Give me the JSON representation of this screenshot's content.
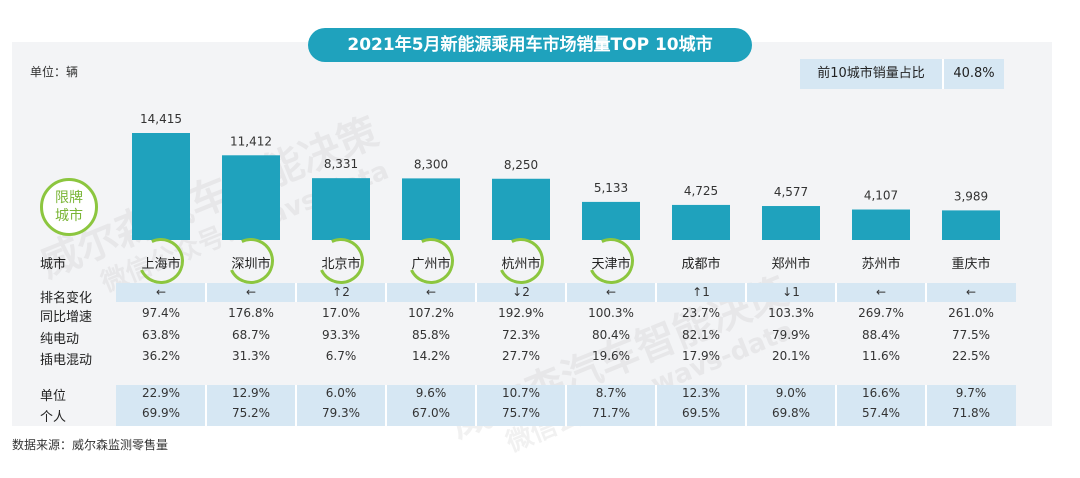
{
  "title": "2021年5月新能源乘用车市场销量TOP 10城市",
  "unit_label": "单位：辆",
  "top10_share": {
    "label": "前10城市销量占比",
    "value": "40.8%"
  },
  "watermarks": [
    "威尔森汽车智能决策",
    "微信公众号：wavs-data",
    "威尔森汽车智能决策",
    "微信公众号：wavs-data"
  ],
  "limit_badge": {
    "line1": "限牌",
    "line2": "城市"
  },
  "row_labels": {
    "city": "城市",
    "rank_change": "排名变化",
    "yoy": "同比增速",
    "bev": "纯电动",
    "phev": "插电混动",
    "org": "单位",
    "personal": "个人"
  },
  "source": "数据来源：威尔森监测零售量",
  "chart_data": {
    "type": "bar",
    "title": "2021年5月新能源乘用车市场销量TOP 10城市",
    "ylabel": "单位：辆",
    "categories": [
      "上海市",
      "深圳市",
      "北京市",
      "广州市",
      "杭州市",
      "天津市",
      "成都市",
      "郑州市",
      "苏州市",
      "重庆市"
    ],
    "values": [
      14415,
      11412,
      8331,
      8300,
      8250,
      5133,
      4725,
      4577,
      4107,
      3989
    ],
    "value_labels": [
      "14,415",
      "11,412",
      "8,331",
      "8,300",
      "8,250",
      "5,133",
      "4,725",
      "4,577",
      "4,107",
      "3,989"
    ],
    "ylim": [
      0,
      14415
    ],
    "limit_cities": [
      true,
      true,
      true,
      true,
      true,
      true,
      false,
      false,
      false,
      false
    ],
    "bar_color": "#1fa2bd",
    "rank_change": [
      "←",
      "←",
      "↑2",
      "←",
      "↓2",
      "←",
      "↑1",
      "↓1",
      "←",
      "←"
    ],
    "yoy": [
      "97.4%",
      "176.8%",
      "17.0%",
      "107.2%",
      "192.9%",
      "100.3%",
      "23.7%",
      "103.3%",
      "269.7%",
      "261.0%"
    ],
    "bev": [
      "63.8%",
      "68.7%",
      "93.3%",
      "85.8%",
      "72.3%",
      "80.4%",
      "82.1%",
      "79.9%",
      "88.4%",
      "77.5%"
    ],
    "phev": [
      "36.2%",
      "31.3%",
      "6.7%",
      "14.2%",
      "27.7%",
      "19.6%",
      "17.9%",
      "20.1%",
      "11.6%",
      "22.5%"
    ],
    "org": [
      "22.9%",
      "12.9%",
      "6.0%",
      "9.6%",
      "10.7%",
      "8.7%",
      "12.3%",
      "9.0%",
      "16.6%",
      "9.7%"
    ],
    "personal": [
      "69.9%",
      "75.2%",
      "79.3%",
      "67.0%",
      "75.7%",
      "71.7%",
      "69.5%",
      "69.8%",
      "57.4%",
      "71.8%"
    ]
  },
  "colors": {
    "accent": "#1fa2bd",
    "limit_ring": "#8cc63f",
    "band": "#d6e7f3"
  }
}
